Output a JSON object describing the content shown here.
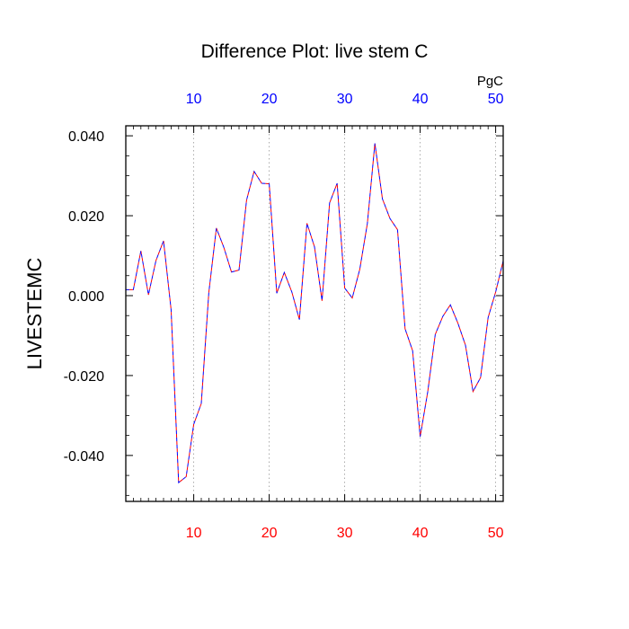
{
  "chart_data": {
    "type": "line",
    "title": "Difference Plot: live stem C",
    "ylabel": "LIVESTEMC",
    "top_unit_label": "PgC",
    "xlim": [
      1,
      51
    ],
    "ylim": [
      -0.0515,
      0.0425
    ],
    "x_ticks": [
      10,
      20,
      30,
      40,
      50
    ],
    "x_tick_labels": [
      "10",
      "20",
      "30",
      "40",
      "50"
    ],
    "y_ticks": [
      -0.04,
      -0.02,
      0.0,
      0.02,
      0.04
    ],
    "y_tick_labels": [
      "-0.040",
      "-0.020",
      "0.000",
      "0.020",
      "0.040"
    ],
    "grid": "vertical dotted",
    "colors": {
      "bottom_axis_labels": "#ff0000",
      "top_axis_labels": "#0000ff",
      "line_dash_a": "#0000ff",
      "line_dash_b": "#ff0000"
    },
    "series": [
      {
        "x": [
          1,
          2,
          3,
          4,
          5,
          6,
          7,
          8,
          9,
          10,
          11,
          12,
          13,
          14,
          15,
          16,
          17,
          18,
          19,
          20,
          21,
          22,
          23,
          24,
          25,
          26,
          27,
          28,
          29,
          30,
          31,
          32,
          33,
          34,
          35,
          36,
          37,
          38,
          39,
          40,
          41,
          42,
          43,
          44,
          45,
          46,
          47,
          48,
          49,
          50,
          51
        ],
        "values": [
          0.0015,
          0.0015,
          0.0112,
          0.0002,
          0.0088,
          0.0137,
          -0.0035,
          -0.0468,
          -0.0453,
          -0.0322,
          -0.027,
          0.0008,
          0.0169,
          0.012,
          0.0059,
          0.0064,
          0.0239,
          0.0311,
          0.0281,
          0.028,
          0.0006,
          0.0058,
          0.0009,
          -0.006,
          0.0181,
          0.0122,
          -0.0013,
          0.0232,
          0.0281,
          0.0019,
          -0.0006,
          0.0066,
          0.018,
          0.0381,
          0.0242,
          0.0193,
          0.0165,
          -0.0083,
          -0.0138,
          -0.0353,
          -0.0241,
          -0.0097,
          -0.0052,
          -0.0023,
          -0.0069,
          -0.0124,
          -0.024,
          -0.0205,
          -0.0055,
          0.0009,
          0.0087
        ]
      }
    ]
  }
}
